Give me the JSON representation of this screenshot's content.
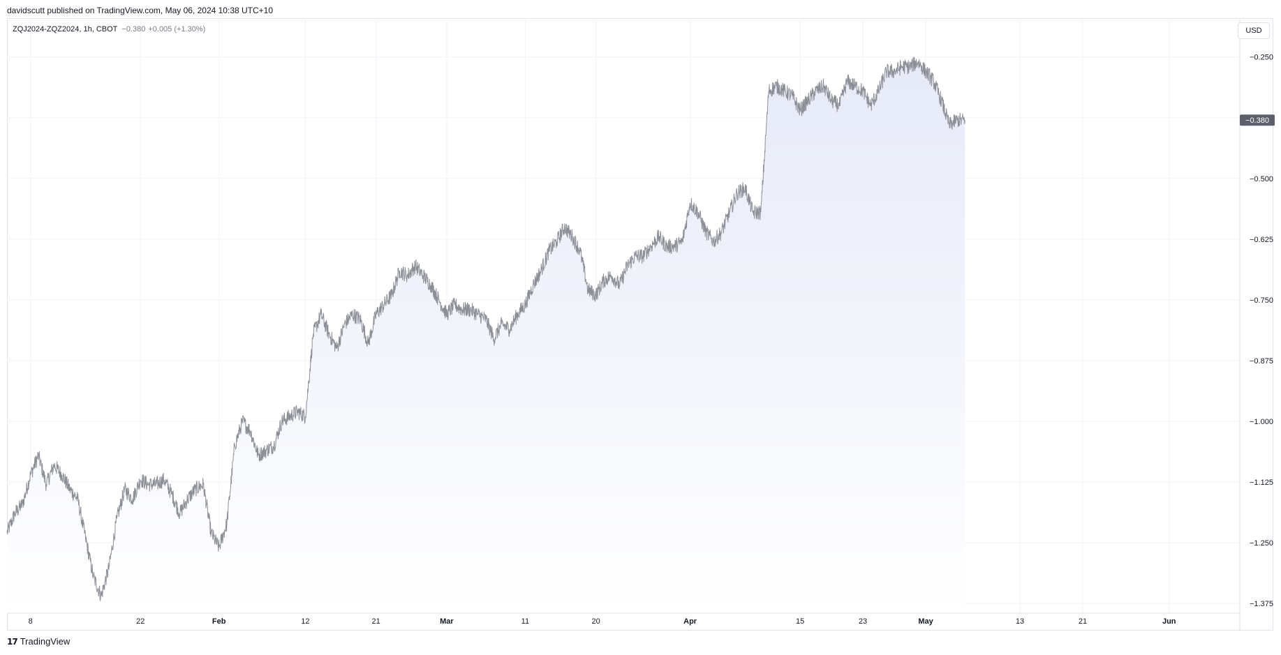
{
  "header": {
    "publish_text": "davidscutt published on TradingView.com, May 06, 2024 10:38 UTC+10"
  },
  "legend": {
    "symbol": "ZQJ2024-ZQZ2024, 1h, CBOT",
    "last": "−0.380",
    "change": "+0.005 (+1.30%)"
  },
  "toolbar": {
    "currency_label": "USD"
  },
  "footer": {
    "logo_mark": "17",
    "logo_text": "TradingView"
  },
  "colors": {
    "line": "#8c8f96",
    "fill_top": "#e6eaf8",
    "fill_bottom": "#ffffff",
    "grid": "#f0f3fa",
    "badge": "#5d606b"
  },
  "chart_data": {
    "type": "area",
    "title": "",
    "xlabel": "",
    "ylabel": "",
    "grid": true,
    "x_range": [
      "2024-01-05",
      "2024-06-10"
    ],
    "ylim": [
      -1.395,
      -0.17
    ],
    "y_ticks": [
      -0.25,
      -0.375,
      -0.5,
      -0.625,
      -0.75,
      -0.875,
      -1.0,
      -1.125,
      -1.25,
      -1.375
    ],
    "y_tick_labels": [
      "−0.250",
      "−0.375",
      "−0.500",
      "−0.625",
      "−0.750",
      "−0.875",
      "−1.000",
      "−1.125",
      "−1.250",
      "−1.375"
    ],
    "x_ticks": [
      {
        "date": "2024-01-08",
        "label": "8",
        "bold": false
      },
      {
        "date": "2024-01-22",
        "label": "22",
        "bold": false
      },
      {
        "date": "2024-02-01",
        "label": "Feb",
        "bold": true
      },
      {
        "date": "2024-02-12",
        "label": "12",
        "bold": false
      },
      {
        "date": "2024-02-21",
        "label": "21",
        "bold": false
      },
      {
        "date": "2024-03-01",
        "label": "Mar",
        "bold": true
      },
      {
        "date": "2024-03-11",
        "label": "11",
        "bold": false
      },
      {
        "date": "2024-03-20",
        "label": "20",
        "bold": false
      },
      {
        "date": "2024-04-01",
        "label": "Apr",
        "bold": true
      },
      {
        "date": "2024-04-15",
        "label": "15",
        "bold": false
      },
      {
        "date": "2024-04-23",
        "label": "23",
        "bold": false
      },
      {
        "date": "2024-05-01",
        "label": "May",
        "bold": true
      },
      {
        "date": "2024-05-13",
        "label": "13",
        "bold": false
      },
      {
        "date": "2024-05-21",
        "label": "21",
        "bold": false
      },
      {
        "date": "2024-06-01",
        "label": "Jun",
        "bold": true
      }
    ],
    "last_value": -0.38,
    "last_value_label": "−0.380",
    "series": [
      {
        "x": [
          "2024-01-05",
          "2024-01-06",
          "2024-01-07",
          "2024-01-08",
          "2024-01-09",
          "2024-01-10",
          "2024-01-11",
          "2024-01-12",
          "2024-01-13",
          "2024-01-14",
          "2024-01-15",
          "2024-01-16",
          "2024-01-17",
          "2024-01-18",
          "2024-01-19",
          "2024-01-20",
          "2024-01-21",
          "2024-01-22",
          "2024-01-23",
          "2024-01-24",
          "2024-01-25",
          "2024-01-26",
          "2024-01-27",
          "2024-01-28",
          "2024-01-29",
          "2024-01-30",
          "2024-01-31",
          "2024-02-01",
          "2024-02-02",
          "2024-02-03",
          "2024-02-04",
          "2024-02-05",
          "2024-02-06",
          "2024-02-07",
          "2024-02-08",
          "2024-02-09",
          "2024-02-10",
          "2024-02-11",
          "2024-02-12",
          "2024-02-13",
          "2024-02-14",
          "2024-02-15",
          "2024-02-16",
          "2024-02-17",
          "2024-02-18",
          "2024-02-19",
          "2024-02-20",
          "2024-02-21",
          "2024-02-22",
          "2024-02-23",
          "2024-02-24",
          "2024-02-25",
          "2024-02-26",
          "2024-02-27",
          "2024-02-28",
          "2024-02-29",
          "2024-03-01",
          "2024-03-02",
          "2024-03-03",
          "2024-03-04",
          "2024-03-05",
          "2024-03-06",
          "2024-03-07",
          "2024-03-08",
          "2024-03-09",
          "2024-03-10",
          "2024-03-11",
          "2024-03-12",
          "2024-03-13",
          "2024-03-14",
          "2024-03-15",
          "2024-03-16",
          "2024-03-17",
          "2024-03-18",
          "2024-03-19",
          "2024-03-20",
          "2024-03-21",
          "2024-03-22",
          "2024-03-23",
          "2024-03-24",
          "2024-03-25",
          "2024-03-26",
          "2024-03-27",
          "2024-03-28",
          "2024-03-29",
          "2024-03-30",
          "2024-03-31",
          "2024-04-01",
          "2024-04-02",
          "2024-04-03",
          "2024-04-04",
          "2024-04-05",
          "2024-04-06",
          "2024-04-07",
          "2024-04-08",
          "2024-04-09",
          "2024-04-10",
          "2024-04-11",
          "2024-04-12",
          "2024-04-13",
          "2024-04-14",
          "2024-04-15",
          "2024-04-16",
          "2024-04-17",
          "2024-04-18",
          "2024-04-19",
          "2024-04-20",
          "2024-04-21",
          "2024-04-22",
          "2024-04-23",
          "2024-04-24",
          "2024-04-25",
          "2024-04-26",
          "2024-04-27",
          "2024-04-28",
          "2024-04-29",
          "2024-04-30",
          "2024-05-01",
          "2024-05-02",
          "2024-05-03",
          "2024-05-04",
          "2024-05-05",
          "2024-05-06"
        ],
        "values": [
          -1.23,
          -1.19,
          -1.17,
          -1.11,
          -1.07,
          -1.13,
          -1.09,
          -1.11,
          -1.14,
          -1.16,
          -1.24,
          -1.32,
          -1.36,
          -1.3,
          -1.2,
          -1.14,
          -1.16,
          -1.12,
          -1.13,
          -1.13,
          -1.12,
          -1.15,
          -1.19,
          -1.16,
          -1.14,
          -1.13,
          -1.23,
          -1.26,
          -1.21,
          -1.05,
          -1.0,
          -1.02,
          -1.07,
          -1.06,
          -1.05,
          -1.0,
          -0.99,
          -0.98,
          -0.99,
          -0.82,
          -0.78,
          -0.82,
          -0.85,
          -0.8,
          -0.78,
          -0.79,
          -0.84,
          -0.78,
          -0.76,
          -0.74,
          -0.69,
          -0.7,
          -0.68,
          -0.7,
          -0.72,
          -0.75,
          -0.78,
          -0.76,
          -0.77,
          -0.77,
          -0.78,
          -0.79,
          -0.83,
          -0.8,
          -0.81,
          -0.78,
          -0.76,
          -0.72,
          -0.69,
          -0.65,
          -0.63,
          -0.6,
          -0.62,
          -0.65,
          -0.73,
          -0.74,
          -0.71,
          -0.7,
          -0.72,
          -0.68,
          -0.66,
          -0.66,
          -0.64,
          -0.62,
          -0.64,
          -0.64,
          -0.63,
          -0.55,
          -0.57,
          -0.61,
          -0.63,
          -0.61,
          -0.57,
          -0.53,
          -0.52,
          -0.57,
          -0.57,
          -0.32,
          -0.31,
          -0.32,
          -0.33,
          -0.36,
          -0.34,
          -0.32,
          -0.31,
          -0.34,
          -0.35,
          -0.3,
          -0.31,
          -0.32,
          -0.35,
          -0.32,
          -0.28,
          -0.28,
          -0.27,
          -0.27,
          -0.26,
          -0.28,
          -0.3,
          -0.34,
          -0.39,
          -0.38,
          -0.38
        ]
      }
    ]
  }
}
